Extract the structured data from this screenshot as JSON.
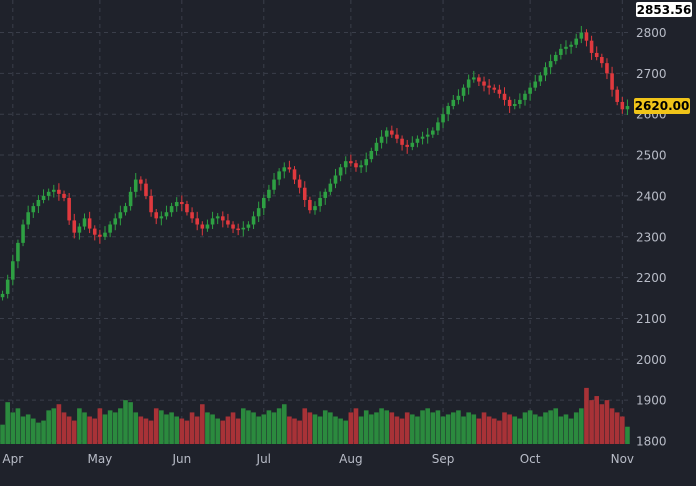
{
  "chart_data": {
    "type": "candlestick",
    "y_axis": {
      "range": [
        1780,
        2870
      ],
      "ticks": [
        1800,
        1900,
        2000,
        2100,
        2200,
        2300,
        2400,
        2500,
        2600,
        2700,
        2800
      ],
      "tick_labels": [
        "1800",
        "1900",
        "2000",
        "2100",
        "2200",
        "2300",
        "2400",
        "2500",
        "2600",
        "2700",
        "2800"
      ],
      "position": "right"
    },
    "x_axis": {
      "labels": [
        "Apr",
        "May",
        "Jun",
        "Jul",
        "Aug",
        "Sep",
        "Oct",
        "Nov"
      ],
      "label_bar_index": [
        2,
        19,
        35,
        51,
        68,
        86,
        103,
        121
      ]
    },
    "grid": true,
    "price_labels": {
      "high": "2853.56",
      "last": "2620.00"
    },
    "series": {
      "close": [
        2160,
        2195,
        2240,
        2285,
        2330,
        2360,
        2375,
        2390,
        2400,
        2410,
        2415,
        2405,
        2395,
        2340,
        2310,
        2325,
        2345,
        2320,
        2305,
        2300,
        2310,
        2330,
        2345,
        2360,
        2375,
        2410,
        2440,
        2430,
        2400,
        2360,
        2345,
        2350,
        2360,
        2375,
        2385,
        2380,
        2360,
        2345,
        2330,
        2320,
        2330,
        2345,
        2350,
        2340,
        2330,
        2320,
        2318,
        2322,
        2330,
        2350,
        2370,
        2395,
        2415,
        2440,
        2460,
        2470,
        2465,
        2440,
        2420,
        2390,
        2365,
        2375,
        2395,
        2410,
        2430,
        2450,
        2470,
        2485,
        2480,
        2470,
        2475,
        2490,
        2510,
        2530,
        2545,
        2560,
        2550,
        2540,
        2525,
        2520,
        2530,
        2540,
        2545,
        2550,
        2560,
        2580,
        2600,
        2620,
        2635,
        2645,
        2665,
        2685,
        2690,
        2680,
        2670,
        2665,
        2660,
        2650,
        2635,
        2620,
        2625,
        2635,
        2650,
        2665,
        2680,
        2695,
        2715,
        2730,
        2745,
        2760,
        2765,
        2770,
        2785,
        2800,
        2780,
        2750,
        2740,
        2725,
        2700,
        2660,
        2630,
        2612,
        2620
      ],
      "volume": [
        1840,
        1895,
        1870,
        1880,
        1860,
        1865,
        1855,
        1845,
        1850,
        1875,
        1880,
        1890,
        1870,
        1860,
        1850,
        1880,
        1870,
        1860,
        1855,
        1880,
        1865,
        1875,
        1870,
        1880,
        1900,
        1895,
        1870,
        1860,
        1855,
        1850,
        1880,
        1875,
        1865,
        1870,
        1860,
        1855,
        1850,
        1870,
        1860,
        1890,
        1870,
        1865,
        1855,
        1850,
        1860,
        1870,
        1855,
        1880,
        1875,
        1870,
        1860,
        1865,
        1875,
        1870,
        1880,
        1890,
        1860,
        1855,
        1850,
        1880,
        1870,
        1865,
        1860,
        1875,
        1870,
        1860,
        1855,
        1850,
        1870,
        1880,
        1860,
        1875,
        1865,
        1870,
        1880,
        1875,
        1870,
        1860,
        1855,
        1870,
        1865,
        1860,
        1875,
        1880,
        1870,
        1875,
        1860,
        1865,
        1870,
        1875,
        1860,
        1870,
        1865,
        1855,
        1870,
        1860,
        1855,
        1850,
        1870,
        1865,
        1860,
        1855,
        1870,
        1875,
        1865,
        1860,
        1870,
        1875,
        1880,
        1860,
        1865,
        1855,
        1870,
        1880,
        1930,
        1900,
        1910,
        1890,
        1900,
        1880,
        1870,
        1860,
        1835
      ]
    },
    "colors": {
      "up": "#2ea043",
      "down": "#e0393e",
      "up_volume": "#2b8a3e",
      "down_volume": "#a83237",
      "grid": "#3a3e4a",
      "axis_text": "#b8bcc7",
      "background": "#1f222b",
      "high_label_bg": "#ffffff",
      "high_label_text": "#000000",
      "last_label_bg": "#f0c419",
      "last_label_text": "#000000"
    }
  }
}
